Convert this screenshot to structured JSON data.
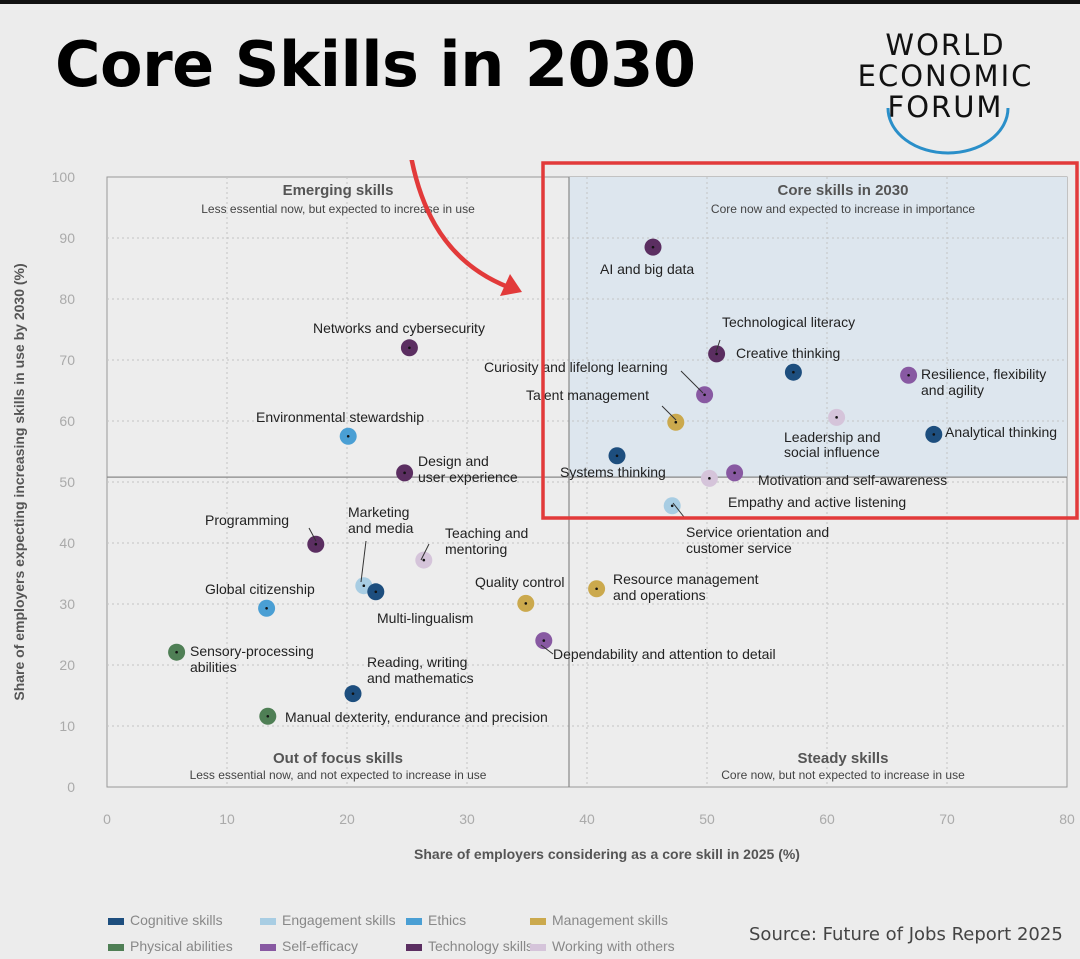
{
  "headline": "Core Skills in 2030",
  "logo": {
    "line1": "WORLD",
    "line2": "ECONOMIC",
    "line3": "FORUM"
  },
  "source": "Source: Future of Jobs Report 2025",
  "colors": {
    "cognitive": "#1d4e7e",
    "engagement": "#a8cde3",
    "ethics": "#4a9fd4",
    "management": "#cba94d",
    "physical": "#4f7f55",
    "self_efficacy": "#8859a2",
    "technology": "#5b2e61",
    "working": "#d5c4da",
    "highlight": "#e23a3a",
    "accent": "#e23a3a"
  },
  "chart_data": {
    "type": "scatter",
    "xlabel": "Share of employers considering as a core skill in 2025 (%)",
    "ylabel": "Share of employers expecting increasing skills in use by 2030 (%)",
    "xlim": [
      0,
      80
    ],
    "ylim": [
      0,
      100
    ],
    "xticks": [
      0,
      10,
      20,
      30,
      40,
      50,
      60,
      70,
      80
    ],
    "yticks": [
      0,
      10,
      20,
      30,
      40,
      50,
      60,
      70,
      80,
      90,
      100
    ],
    "x_divider": 38.5,
    "y_divider": 50.8,
    "grid": true,
    "quadrants": [
      {
        "title": "Emerging skills",
        "subtitle": "Less essential now, but expected to increase in use"
      },
      {
        "title": "Core skills in 2030",
        "subtitle": "Core now and expected to increase in importance"
      },
      {
        "title": "Out of focus skills",
        "subtitle": "Less essential now, and not expected to increase in use"
      },
      {
        "title": "Steady skills",
        "subtitle": "Core now, but not expected to increase in use"
      }
    ],
    "legend": [
      {
        "key": "cognitive",
        "label": "Cognitive skills"
      },
      {
        "key": "engagement",
        "label": "Engagement skills"
      },
      {
        "key": "ethics",
        "label": "Ethics"
      },
      {
        "key": "management",
        "label": "Management skills"
      },
      {
        "key": "physical",
        "label": "Physical abilities"
      },
      {
        "key": "self_efficacy",
        "label": "Self-efficacy"
      },
      {
        "key": "technology",
        "label": "Technology skills"
      },
      {
        "key": "working",
        "label": "Working with others"
      }
    ],
    "points": [
      {
        "label": "AI and big data",
        "x": 45.5,
        "y": 88.5,
        "cat": "technology"
      },
      {
        "label": "Networks and cybersecurity",
        "x": 25.2,
        "y": 72.0,
        "cat": "technology"
      },
      {
        "label": "Technological literacy",
        "x": 50.8,
        "y": 71.0,
        "cat": "technology"
      },
      {
        "label": "Creative thinking",
        "x": 57.2,
        "y": 68.0,
        "cat": "cognitive"
      },
      {
        "label": "Resilience, flexibility and agility",
        "x": 66.8,
        "y": 67.5,
        "cat": "self_efficacy"
      },
      {
        "label": "Curiosity and lifelong learning",
        "x": 49.8,
        "y": 64.3,
        "cat": "self_efficacy"
      },
      {
        "label": "Leadership and social influence",
        "x": 60.8,
        "y": 60.6,
        "cat": "working"
      },
      {
        "label": "Talent management",
        "x": 47.4,
        "y": 59.8,
        "cat": "management"
      },
      {
        "label": "Analytical thinking",
        "x": 68.9,
        "y": 57.8,
        "cat": "cognitive"
      },
      {
        "label": "Environmental stewardship",
        "x": 20.1,
        "y": 57.5,
        "cat": "ethics"
      },
      {
        "label": "Systems thinking",
        "x": 42.5,
        "y": 54.3,
        "cat": "cognitive"
      },
      {
        "label": "Design and user experience",
        "x": 24.8,
        "y": 51.5,
        "cat": "technology"
      },
      {
        "label": "Motivation and self-awareness",
        "x": 52.3,
        "y": 51.5,
        "cat": "self_efficacy"
      },
      {
        "label": "Empathy and active listening",
        "x": 50.2,
        "y": 50.6,
        "cat": "working"
      },
      {
        "label": "Service orientation and customer service",
        "x": 47.1,
        "y": 46.1,
        "cat": "engagement"
      },
      {
        "label": "Programming",
        "x": 17.4,
        "y": 39.8,
        "cat": "technology"
      },
      {
        "label": "Teaching and mentoring",
        "x": 26.4,
        "y": 37.2,
        "cat": "working"
      },
      {
        "label": "Marketing and media",
        "x": 21.4,
        "y": 33.0,
        "cat": "engagement"
      },
      {
        "label": "Multi-lingualism",
        "x": 22.4,
        "y": 32.0,
        "cat": "cognitive"
      },
      {
        "label": "Resource management and operations",
        "x": 40.8,
        "y": 32.5,
        "cat": "management"
      },
      {
        "label": "Quality control",
        "x": 34.9,
        "y": 30.1,
        "cat": "management"
      },
      {
        "label": "Global citizenship",
        "x": 13.3,
        "y": 29.3,
        "cat": "ethics"
      },
      {
        "label": "Dependability and attention to detail",
        "x": 36.4,
        "y": 24.0,
        "cat": "self_efficacy"
      },
      {
        "label": "Sensory-processing abilities",
        "x": 5.8,
        "y": 22.1,
        "cat": "physical"
      },
      {
        "label": "Reading, writing and mathematics",
        "x": 20.5,
        "y": 15.3,
        "cat": "cognitive"
      },
      {
        "label": "Manual dexterity, endurance and precision",
        "x": 13.4,
        "y": 11.6,
        "cat": "physical"
      }
    ]
  }
}
